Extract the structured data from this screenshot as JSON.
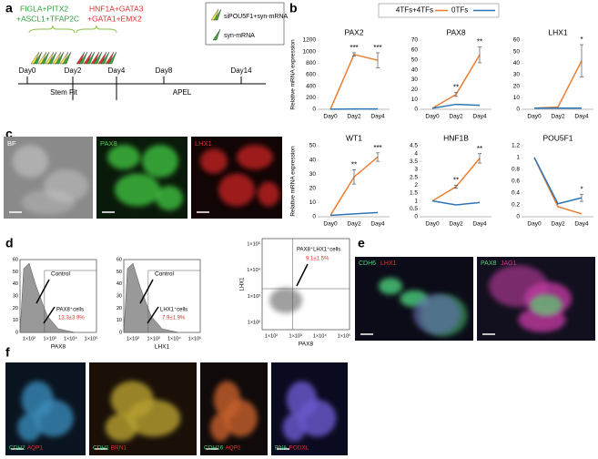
{
  "panel_labels": [
    "a",
    "b",
    "c",
    "d",
    "e",
    "f"
  ],
  "panel_a": {
    "group1": [
      "FIGLA+PITX2",
      "+ASCL1+TFAP2C"
    ],
    "group2": [
      "HNF1A+GATA3",
      "+GATA1+EMX2"
    ],
    "legend": [
      "siPOU5F1+syn-mRNA",
      "syn-mRNA"
    ],
    "days": [
      "Day0",
      "Day2",
      "Day4",
      "Day8",
      "Day14"
    ],
    "media": [
      "Stem Fit",
      "APEL"
    ]
  },
  "chart_data": [
    {
      "type": "line",
      "title": "PAX2",
      "ylabel": "Relative mRNA expression",
      "categories": [
        "Day0",
        "Day2",
        "Day4"
      ],
      "series": [
        {
          "name": "4TFs+4TFs",
          "color": "#ed7d31",
          "values": [
            1,
            950,
            850
          ],
          "errors": [
            null,
            30,
            130
          ]
        },
        {
          "name": "0TFs",
          "color": "#2e75b6",
          "values": [
            1,
            5,
            5
          ],
          "errors": [
            null,
            null,
            null
          ]
        }
      ],
      "significance": [
        null,
        "***",
        "***"
      ],
      "ylim": [
        0,
        1200
      ],
      "yticks": [
        0,
        200,
        400,
        600,
        800,
        1000,
        1200
      ]
    },
    {
      "type": "line",
      "title": "PAX8",
      "categories": [
        "Day0",
        "Day2",
        "Day4"
      ],
      "series": [
        {
          "name": "4TFs+4TFs",
          "color": "#ed7d31",
          "values": [
            1,
            15,
            55
          ],
          "errors": [
            null,
            2,
            8
          ]
        },
        {
          "name": "0TFs",
          "color": "#2e75b6",
          "values": [
            1,
            5,
            4
          ],
          "errors": [
            null,
            null,
            null
          ]
        }
      ],
      "significance": [
        null,
        "**",
        "**"
      ],
      "ylim": [
        0,
        70
      ],
      "yticks": [
        0,
        10,
        20,
        30,
        40,
        50,
        60,
        70
      ]
    },
    {
      "type": "line",
      "title": "LHX1",
      "categories": [
        "Day0",
        "Day2",
        "Day4"
      ],
      "series": [
        {
          "name": "4TFs+4TFs",
          "color": "#ed7d31",
          "values": [
            1,
            2,
            42
          ],
          "errors": [
            null,
            null,
            14
          ]
        },
        {
          "name": "0TFs",
          "color": "#2e75b6",
          "values": [
            1,
            1,
            1
          ],
          "errors": [
            null,
            null,
            null
          ]
        }
      ],
      "significance": [
        null,
        null,
        "*"
      ],
      "ylim": [
        0,
        60
      ],
      "yticks": [
        0,
        10,
        20,
        30,
        40,
        50,
        60
      ]
    },
    {
      "type": "line",
      "title": "WT1",
      "ylabel": "Relative mRNA expression",
      "categories": [
        "Day0",
        "Day2",
        "Day4"
      ],
      "series": [
        {
          "name": "4TFs+4TFs",
          "color": "#ed7d31",
          "values": [
            1,
            28,
            42
          ],
          "errors": [
            null,
            5,
            3
          ]
        },
        {
          "name": "0TFs",
          "color": "#2e75b6",
          "values": [
            1,
            2,
            3
          ],
          "errors": [
            null,
            null,
            null
          ]
        }
      ],
      "significance": [
        null,
        "**",
        "***"
      ],
      "ylim": [
        0,
        50
      ],
      "yticks": [
        0,
        10,
        20,
        30,
        40,
        50
      ]
    },
    {
      "type": "line",
      "title": "HNF1B",
      "categories": [
        "Day0",
        "Day2",
        "Day4"
      ],
      "series": [
        {
          "name": "4TFs+4TFs",
          "color": "#ed7d31",
          "values": [
            1,
            1.9,
            3.7
          ],
          "errors": [
            null,
            0.1,
            0.3
          ]
        },
        {
          "name": "0TFs",
          "color": "#2e75b6",
          "values": [
            1,
            0.75,
            0.9
          ],
          "errors": [
            null,
            null,
            null
          ]
        }
      ],
      "significance": [
        null,
        "**",
        "**"
      ],
      "ylim": [
        0,
        4.5
      ],
      "yticks": [
        0,
        0.5,
        1,
        1.5,
        2,
        2.5,
        3,
        3.5,
        4,
        4.5
      ]
    },
    {
      "type": "line",
      "title": "POU5F1",
      "categories": [
        "Day0",
        "Day2",
        "Day4"
      ],
      "series": [
        {
          "name": "4TFs+4TFs",
          "color": "#ed7d31",
          "values": [
            1,
            0.17,
            0.05
          ],
          "errors": [
            null,
            null,
            null
          ]
        },
        {
          "name": "0TFs",
          "color": "#2e75b6",
          "values": [
            1,
            0.22,
            0.32
          ],
          "errors": [
            null,
            null,
            0.06
          ]
        }
      ],
      "significance": [
        null,
        null,
        "*"
      ],
      "ylim": [
        0,
        1.2
      ],
      "yticks": [
        0,
        0.2,
        0.4,
        0.6,
        0.8,
        1,
        1.2
      ]
    }
  ],
  "panel_c": {
    "labels": [
      "BF",
      "PAX8",
      "LHX1"
    ]
  },
  "panel_d": {
    "plots": [
      {
        "control": "Control",
        "gate": "PAX8⁺cells",
        "percent": "13.3±3.9%",
        "xlabel": "PAX8",
        "xticks": [
          "1×10²",
          "1×10³",
          "1×10⁴",
          "1×10⁵"
        ],
        "yticks": [
          "0",
          "10",
          "20",
          "30",
          "40",
          "50",
          "60"
        ]
      },
      {
        "control": "Control",
        "gate": "LHX1⁺cells",
        "percent": "7.9±1.9%",
        "xlabel": "LHX1",
        "xticks": [
          "1×10²",
          "1×10³",
          "1×10⁴",
          "1×10⁵"
        ],
        "yticks": [
          "0",
          "10",
          "20",
          "30",
          "40",
          "50",
          "60"
        ]
      },
      {
        "gate": "PAX8⁺LHX1⁺cells",
        "percent": "9.1±1.5%",
        "xlabel": "PAX8",
        "ylabel": "LHX1",
        "xticks": [
          "1×10²",
          "1×10³",
          "1×10⁴",
          "1×10⁵"
        ],
        "yticks": [
          "1×10²",
          "1×10³",
          "1×10⁴",
          "1×10⁵"
        ]
      }
    ]
  },
  "panel_e": {
    "images": [
      [
        "CDH6",
        "LHX1"
      ],
      [
        "PAX8",
        "JAG1"
      ]
    ]
  },
  "panel_f": {
    "images": [
      [
        "CDH2",
        "AQP1"
      ],
      [
        "CDH1",
        "BRN1"
      ],
      [
        "CDH16",
        "AQP1"
      ],
      [
        "PNA",
        "PODXL"
      ]
    ]
  }
}
